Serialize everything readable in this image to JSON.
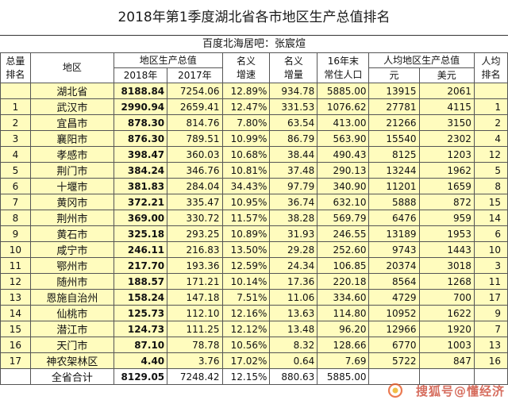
{
  "title": "2018年第1季度湖北省各市地区生产总值排名",
  "subtitle": "百度北海居吧：张宸煊",
  "headers": {
    "rank_line1": "总量",
    "rank_line2": "排名",
    "region": "地区",
    "gdp": "地区生产总值",
    "gdp_2018": "2018年",
    "gdp_2017": "2017年",
    "nominal_growth_line1": "名义",
    "nominal_growth_line2": "增速",
    "nominal_increase_line1": "名义",
    "nominal_increase_line2": "增量",
    "population_line1": "16年末",
    "population_line2": "常住人口",
    "per_capita": "人均地区生产总值",
    "per_capita_yuan": "元",
    "per_capita_usd": "美元",
    "per_capita_rank_line1": "人均",
    "per_capita_rank_line2": "排名"
  },
  "rows": [
    {
      "rank": "",
      "region": "湖北省",
      "gdp2018": "8188.84",
      "gdp2017": "7254.06",
      "growth": "12.89%",
      "increase": "934.78",
      "population": "5885.00",
      "yuan": "13915",
      "usd": "2061",
      "pc_rank": ""
    },
    {
      "rank": "1",
      "region": "武汉市",
      "gdp2018": "2990.94",
      "gdp2017": "2659.41",
      "growth": "12.47%",
      "increase": "331.53",
      "population": "1076.62",
      "yuan": "27781",
      "usd": "4115",
      "pc_rank": "1"
    },
    {
      "rank": "2",
      "region": "宜昌市",
      "gdp2018": "878.30",
      "gdp2017": "814.76",
      "growth": "7.80%",
      "increase": "63.54",
      "population": "413.00",
      "yuan": "21266",
      "usd": "3150",
      "pc_rank": "2"
    },
    {
      "rank": "3",
      "region": "襄阳市",
      "gdp2018": "876.30",
      "gdp2017": "789.51",
      "growth": "10.99%",
      "increase": "86.79",
      "population": "563.90",
      "yuan": "15540",
      "usd": "2302",
      "pc_rank": "4"
    },
    {
      "rank": "4",
      "region": "孝感市",
      "gdp2018": "398.47",
      "gdp2017": "360.03",
      "growth": "10.68%",
      "increase": "38.44",
      "population": "490.43",
      "yuan": "8125",
      "usd": "1203",
      "pc_rank": "12"
    },
    {
      "rank": "5",
      "region": "荆门市",
      "gdp2018": "384.24",
      "gdp2017": "346.76",
      "growth": "10.81%",
      "increase": "37.48",
      "population": "290.13",
      "yuan": "13244",
      "usd": "1962",
      "pc_rank": "5"
    },
    {
      "rank": "6",
      "region": "十堰市",
      "gdp2018": "381.83",
      "gdp2017": "284.04",
      "growth": "34.43%",
      "increase": "97.79",
      "population": "340.90",
      "yuan": "11201",
      "usd": "1659",
      "pc_rank": "8"
    },
    {
      "rank": "7",
      "region": "黄冈市",
      "gdp2018": "372.21",
      "gdp2017": "335.47",
      "growth": "10.95%",
      "increase": "36.74",
      "population": "632.10",
      "yuan": "5888",
      "usd": "872",
      "pc_rank": "15"
    },
    {
      "rank": "8",
      "region": "荆州市",
      "gdp2018": "369.00",
      "gdp2017": "330.72",
      "growth": "11.57%",
      "increase": "38.28",
      "population": "569.79",
      "yuan": "6476",
      "usd": "959",
      "pc_rank": "14"
    },
    {
      "rank": "9",
      "region": "黄石市",
      "gdp2018": "325.18",
      "gdp2017": "293.25",
      "growth": "10.89%",
      "increase": "31.93",
      "population": "246.55",
      "yuan": "13189",
      "usd": "1953",
      "pc_rank": "6"
    },
    {
      "rank": "10",
      "region": "咸宁市",
      "gdp2018": "246.11",
      "gdp2017": "216.83",
      "growth": "13.50%",
      "increase": "29.28",
      "population": "252.60",
      "yuan": "9743",
      "usd": "1443",
      "pc_rank": "10"
    },
    {
      "rank": "11",
      "region": "鄂州市",
      "gdp2018": "217.70",
      "gdp2017": "193.36",
      "growth": "12.59%",
      "increase": "24.34",
      "population": "106.85",
      "yuan": "20374",
      "usd": "3018",
      "pc_rank": "3"
    },
    {
      "rank": "12",
      "region": "随州市",
      "gdp2018": "188.57",
      "gdp2017": "171.21",
      "growth": "10.14%",
      "increase": "17.36",
      "population": "220.18",
      "yuan": "8564",
      "usd": "1268",
      "pc_rank": "11"
    },
    {
      "rank": "13",
      "region": "恩施自治州",
      "gdp2018": "158.24",
      "gdp2017": "147.18",
      "growth": "7.51%",
      "increase": "11.06",
      "population": "334.60",
      "yuan": "4729",
      "usd": "700",
      "pc_rank": "17"
    },
    {
      "rank": "14",
      "region": "仙桃市",
      "gdp2018": "125.73",
      "gdp2017": "112.10",
      "growth": "12.16%",
      "increase": "13.63",
      "population": "114.80",
      "yuan": "10952",
      "usd": "1622",
      "pc_rank": "9"
    },
    {
      "rank": "15",
      "region": "潜江市",
      "gdp2018": "124.73",
      "gdp2017": "111.25",
      "growth": "12.12%",
      "increase": "13.48",
      "population": "96.20",
      "yuan": "12966",
      "usd": "1920",
      "pc_rank": "7"
    },
    {
      "rank": "16",
      "region": "天门市",
      "gdp2018": "87.10",
      "gdp2017": "78.78",
      "growth": "10.56%",
      "increase": "8.32",
      "population": "128.66",
      "yuan": "6770",
      "usd": "1003",
      "pc_rank": "13"
    },
    {
      "rank": "17",
      "region": "神农架林区",
      "gdp2018": "4.40",
      "gdp2017": "3.76",
      "growth": "17.02%",
      "increase": "0.64",
      "population": "7.69",
      "yuan": "5722",
      "usd": "847",
      "pc_rank": "16"
    },
    {
      "rank": "",
      "region": "全省合计",
      "gdp2018": "8129.05",
      "gdp2017": "7248.42",
      "growth": "12.15%",
      "increase": "880.63",
      "population": "5885.00",
      "yuan": "",
      "usd": "",
      "pc_rank": ""
    }
  ],
  "watermark": "搜狐号@懂经济"
}
